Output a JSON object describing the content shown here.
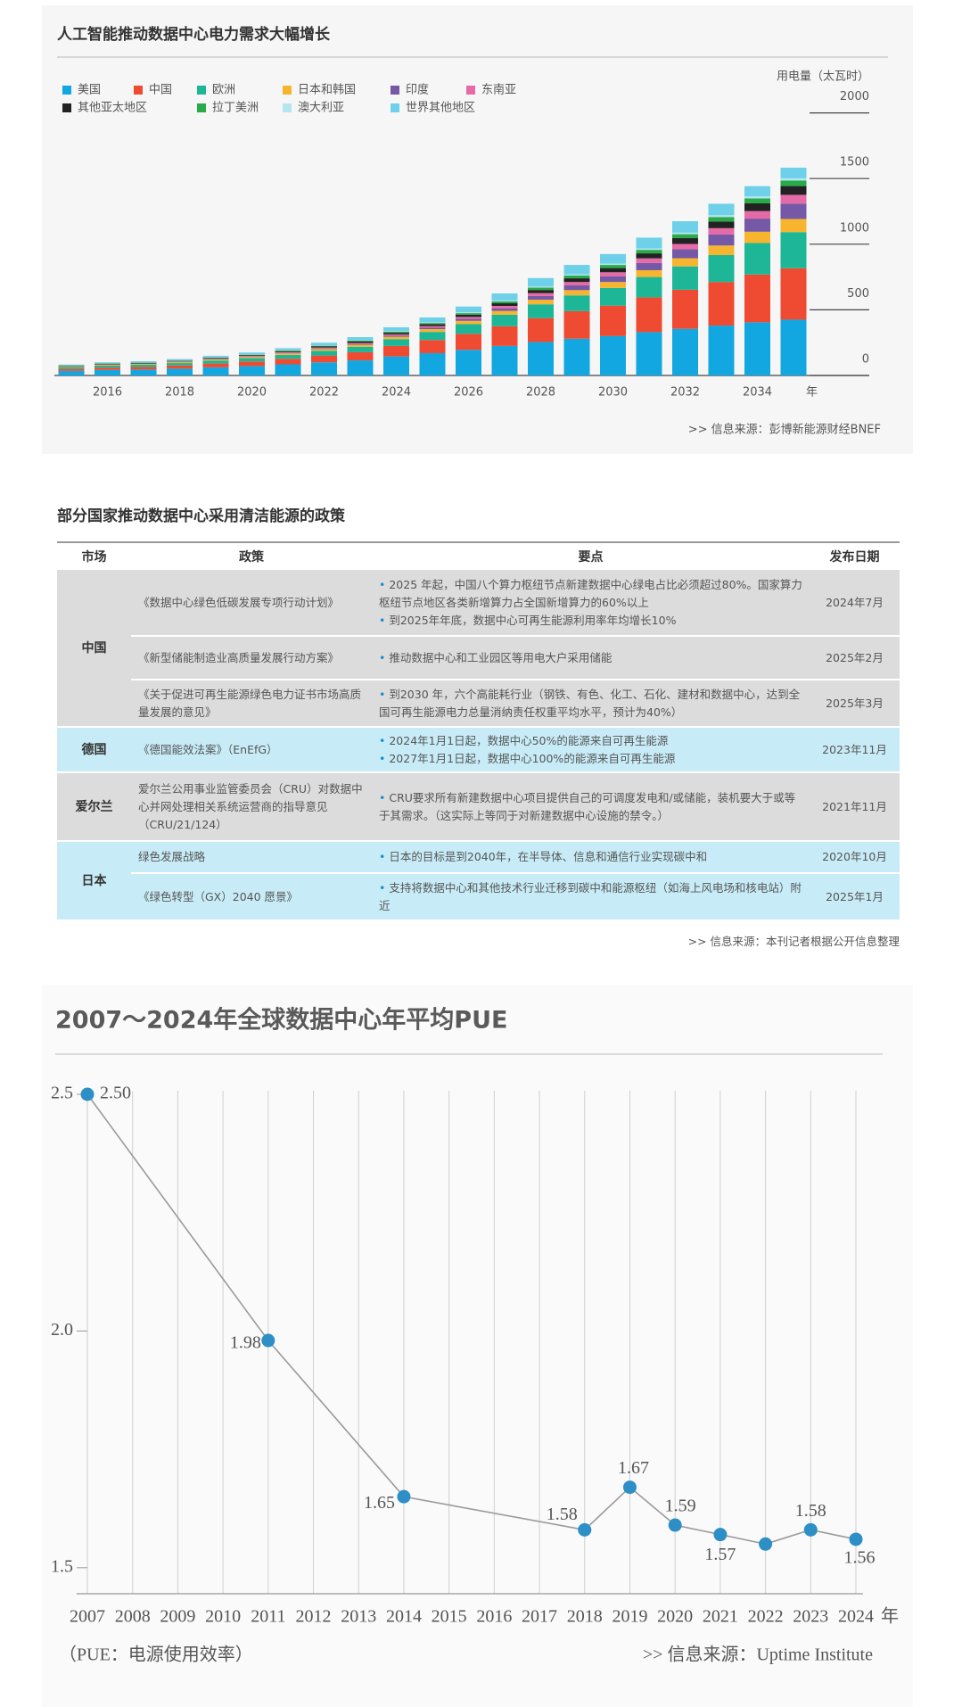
{
  "chart_data": [
    {
      "type": "bar",
      "stacked": true,
      "title": "人工智能推动数据中心电力需求大幅增长",
      "y_label": "用电量（太瓦时）",
      "x_unit": "年",
      "categories": [
        null,
        "2016",
        null,
        "2018",
        null,
        "2020",
        null,
        "2022",
        null,
        "2024",
        null,
        "2026",
        null,
        "2028",
        null,
        "2030",
        null,
        "2032",
        null,
        "2034",
        null
      ],
      "series": [
        {
          "name": "美国",
          "color": "#12a7e0",
          "values": [
            35,
            42,
            45,
            52,
            62,
            72,
            85,
            100,
            115,
            145,
            170,
            195,
            225,
            255,
            280,
            300,
            330,
            355,
            380,
            405,
            425
          ]
        },
        {
          "name": "中国",
          "color": "#ee4b32",
          "values": [
            15,
            18,
            20,
            24,
            29,
            35,
            42,
            52,
            62,
            80,
            100,
            122,
            150,
            182,
            210,
            232,
            265,
            298,
            332,
            364,
            392
          ]
        },
        {
          "name": "欧洲",
          "color": "#1db797",
          "values": [
            14,
            16,
            17,
            19,
            22,
            25,
            30,
            36,
            42,
            52,
            62,
            74,
            88,
            105,
            120,
            135,
            155,
            178,
            205,
            240,
            275
          ]
        },
        {
          "name": "日本和韩国",
          "color": "#f7b52f",
          "values": [
            5,
            6,
            6,
            7,
            8,
            9,
            11,
            13,
            15,
            18,
            21,
            25,
            29,
            35,
            40,
            45,
            52,
            62,
            73,
            86,
            100
          ]
        },
        {
          "name": "印度",
          "color": "#7558a6",
          "values": [
            1,
            1,
            1,
            2,
            2,
            3,
            4,
            5,
            6,
            8,
            11,
            15,
            20,
            28,
            36,
            44,
            55,
            68,
            84,
            100,
            117
          ]
        },
        {
          "name": "东南亚",
          "color": "#e56aa6",
          "values": [
            2,
            2,
            2,
            3,
            4,
            5,
            6,
            7,
            8,
            10,
            12,
            15,
            18,
            22,
            26,
            30,
            35,
            41,
            48,
            57,
            67
          ]
        },
        {
          "name": "其他亚太地区",
          "color": "#222222",
          "values": [
            3,
            4,
            4,
            4,
            5,
            6,
            7,
            8,
            10,
            12,
            14,
            17,
            20,
            24,
            28,
            32,
            38,
            44,
            51,
            59,
            67
          ]
        },
        {
          "name": "拉丁美洲",
          "color": "#2aab4a",
          "values": [
            2,
            3,
            3,
            3,
            4,
            4,
            5,
            6,
            7,
            9,
            10,
            12,
            14,
            18,
            21,
            24,
            27,
            30,
            34,
            38,
            42
          ]
        },
        {
          "name": "澳大利亚",
          "color": "#b3e6ee",
          "values": [
            1,
            1,
            1,
            1,
            2,
            2,
            2,
            3,
            3,
            4,
            5,
            6,
            7,
            8,
            9,
            10,
            11,
            12,
            14,
            15,
            17
          ]
        },
        {
          "name": "世界其他地区",
          "color": "#6fd0ea",
          "values": [
            5,
            7,
            9,
            10,
            12,
            14,
            16,
            20,
            24,
            29,
            37,
            44,
            54,
            65,
            72,
            73,
            82,
            87,
            87,
            78,
            81
          ]
        }
      ],
      "ylim": [
        0,
        2000
      ],
      "yticks": [
        0,
        500,
        1000,
        1500,
        2000
      ],
      "source": ">>  信息来源：彭博新能源财经BNEF"
    },
    {
      "type": "line",
      "title": "2007～2024年全球数据中心年平均PUE",
      "color": "#2d8fc6",
      "line_color": "#9a9a9a",
      "x": [
        2007,
        2011,
        2014,
        2018,
        2019,
        2020,
        2021,
        2022,
        2023,
        2024
      ],
      "values": [
        2.5,
        1.98,
        1.65,
        1.58,
        1.67,
        1.59,
        1.57,
        1.55,
        1.58,
        1.56
      ],
      "value_labels": [
        "2.50",
        "1.98",
        "1.65",
        "1.58",
        "1.67",
        "1.59",
        "1.57",
        null,
        "1.58",
        "1.56"
      ],
      "xlim": [
        2007,
        2024
      ],
      "xticks": [
        2007,
        2008,
        2009,
        2010,
        2011,
        2012,
        2013,
        2014,
        2015,
        2016,
        2017,
        2018,
        2019,
        2020,
        2021,
        2022,
        2023,
        2024
      ],
      "ylim": [
        1.445,
        2.5
      ],
      "yticks": [
        2.5,
        {
          "value": 2,
          "label": "2.0"
        },
        1.5
      ],
      "grid": true,
      "x_unit": "年",
      "note": "（PUE：电源使用效率）",
      "source": ">>  信息来源：Uptime Institute"
    }
  ],
  "table": {
    "title": "部分国家推动数据中心采用清洁能源的政策",
    "header": [
      "市场",
      "政策",
      "要点",
      "发布日期"
    ],
    "groups": [
      {
        "market": "中国",
        "rows": [
          {
            "policy": "《数据中心绿色低碳发展专项行动计划》",
            "points": [
              "2025 年起，中国八个算力枢纽节点新建数据中心绿电占比必须超过80%。国家算力枢纽节点地区各类新增算力占全国新增算力的60%以上",
              "到2025年年底，数据中心可再生能源利用率年均增长10%"
            ],
            "date": "2024年7月"
          },
          {
            "policy": "《新型储能制造业高质量发展行动方案》",
            "points": [
              "推动数据中心和工业园区等用电大户采用储能"
            ],
            "date": "2025年2月"
          },
          {
            "policy": "《关于促进可再生能源绿色电力证书市场高质量发展的意见》",
            "points": [
              "到2030 年，六个高能耗行业（钢铁、有色、化工、石化、建材和数据中心，达到全国可再生能源电力总量消纳责任权重平均水平，预计为40%）"
            ],
            "date": "2025年3月"
          }
        ]
      },
      {
        "market": "德国",
        "rows": [
          {
            "policy": "《德国能效法案》（EnEfG）",
            "points": [
              "2024年1月1日起，数据中心50%的能源来自可再生能源",
              "2027年1月1日起，数据中心100%的能源来自可再生能源"
            ],
            "date": "2023年11月"
          }
        ]
      },
      {
        "market": "爱尔兰",
        "rows": [
          {
            "policy": "爱尔兰公用事业监管委员会（CRU）对数据中心并网处理相关系统运营商的指导意见（CRU/21/124）",
            "points": [
              "CRU要求所有新建数据中心项目提供自己的可调度发电和/或储能，装机要大于或等于其需求。（这实际上等同于对新建数据中心设施的禁令。）"
            ],
            "date": "2021年11月"
          }
        ]
      },
      {
        "market": "日本",
        "rows": [
          {
            "policy": "绿色发展战略",
            "points": [
              "日本的目标是到2040年，在半导体、信息和通信行业实现碳中和"
            ],
            "date": "2020年10月"
          },
          {
            "policy": "《绿色转型（GX）2040 愿景》",
            "points": [
              "支持将数据中心和其他技术行业迁移到碳中和能源枢纽（如海上风电场和核电站）附近"
            ],
            "date": "2025年1月"
          }
        ]
      }
    ],
    "source": ">>  信息来源：本刊记者根据公开信息整理"
  }
}
